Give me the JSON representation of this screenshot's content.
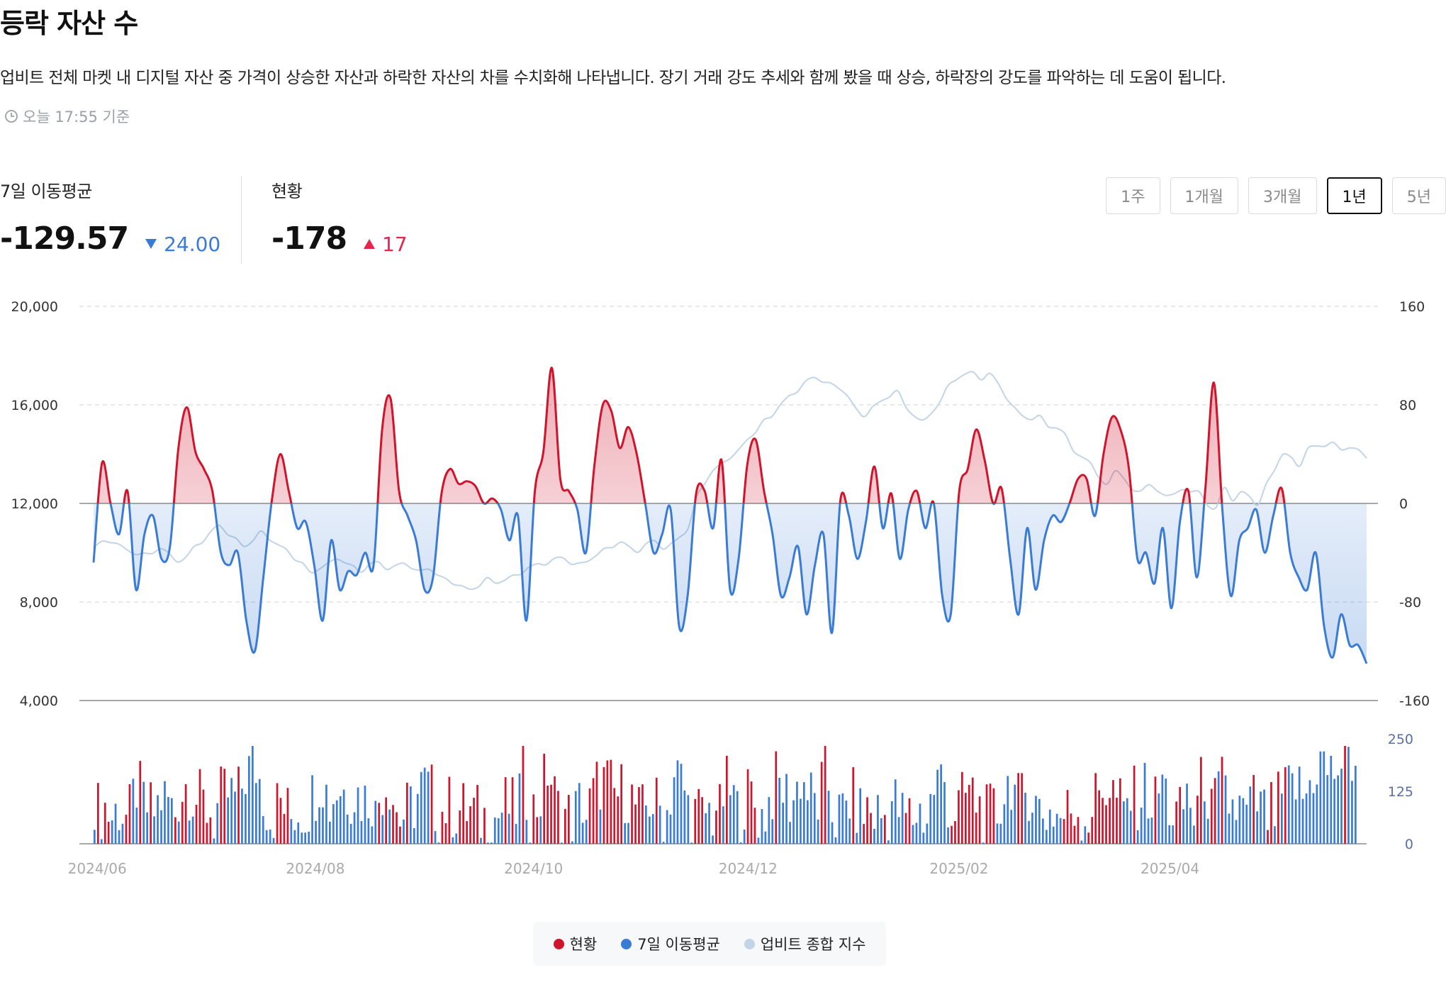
{
  "header": {
    "title": "등락 자산 수",
    "description": "업비트 전체 마켓 내 디지털 자산 중 가격이 상승한 자산과 하락한 자산의 차를 수치화해 나타냅니다. 장기 거래 강도 추세와 함께 봤을 때 상승, 하락장의 강도를 파악하는 데 도움이 됩니다.",
    "updated": "오늘 17:55 기준"
  },
  "stats": {
    "ma7": {
      "label": "7일 이동평균",
      "value": "-129.57",
      "delta": "24.00"
    },
    "current": {
      "label": "현황",
      "value": "-178",
      "delta": "17"
    }
  },
  "periods": {
    "p1": "1주",
    "p2": "1개월",
    "p3": "3개월",
    "p4": "1년",
    "p5": "5년",
    "active": "1년"
  },
  "legend": {
    "current": "현황",
    "ma7": "7일 이동평균",
    "index": "업비트 종합 지수"
  },
  "colors": {
    "red": "#d0142c",
    "blue": "#3a7bd5",
    "index": "#c2d4e6",
    "grid": "#d0d0d0"
  },
  "chart_data": [
    {
      "type": "line",
      "title": "등락 자산 수",
      "x_start": "2024-05-31",
      "x_end": "2025-05-26",
      "x_ticks": [
        "2024/06",
        "2024/08",
        "2024/10",
        "2024/12",
        "2025/02",
        "2025/04"
      ],
      "x_tick_dates": [
        "2024-06-05",
        "2024-08-05",
        "2024-10-05",
        "2024-12-04",
        "2025-02-01",
        "2025-04-01"
      ],
      "y_left_ticks": [
        "20,000",
        "16,000",
        "12,000",
        "8,000",
        "4,000"
      ],
      "y_left_range": [
        4000,
        20000
      ],
      "y_right_ticks": [
        "160",
        "80",
        "0",
        "-80",
        "-160"
      ],
      "y_right_range": [
        -160,
        160
      ],
      "series": [
        {
          "name": "7일 이동평균",
          "axis": "right",
          "sample_every_days": 3,
          "values": [
            -48,
            33,
            0,
            -25,
            10,
            -70,
            -25,
            -10,
            -45,
            -35,
            45,
            78,
            42,
            28,
            10,
            -40,
            -50,
            -40,
            -95,
            -120,
            -60,
            2,
            40,
            10,
            -20,
            -15,
            -50,
            -95,
            -30,
            -70,
            -55,
            -58,
            -40,
            -50,
            60,
            85,
            10,
            -10,
            -30,
            -70,
            -60,
            8,
            28,
            16,
            18,
            14,
            0,
            4,
            -5,
            -30,
            -10,
            -95,
            10,
            42,
            110,
            20,
            10,
            -5,
            -40,
            30,
            80,
            75,
            45,
            62,
            40,
            0,
            -40,
            -25,
            -5,
            -100,
            -75,
            8,
            10,
            -20,
            35,
            -70,
            -45,
            30,
            52,
            10,
            -25,
            -75,
            -60,
            -35,
            -90,
            -50,
            -25,
            -105,
            3,
            -10,
            -45,
            -15,
            30,
            -20,
            8,
            -45,
            -5,
            10,
            -20,
            0,
            -75,
            -90,
            10,
            28,
            60,
            35,
            0,
            12,
            -45,
            -90,
            -20,
            -70,
            -30,
            -10,
            -15,
            0,
            20,
            20,
            -10,
            40,
            70,
            60,
            28,
            -45,
            -40,
            -65,
            -20,
            -85,
            -15,
            10,
            -60,
            12,
            98,
            -5,
            -75,
            -30,
            -20,
            -5,
            -40,
            -10,
            12,
            -40,
            -60,
            -70,
            -40,
            -100,
            -125,
            -90,
            -115,
            -115,
            -130
          ]
        },
        {
          "name": "업비트 종합 지수",
          "axis": "left",
          "sample_every_days": 3,
          "values": [
            10200,
            10400,
            10500,
            10300,
            10100,
            10000,
            9900,
            10000,
            10200,
            9900,
            9700,
            9800,
            10200,
            10500,
            10800,
            11100,
            10800,
            10500,
            10300,
            10500,
            10800,
            10600,
            10300,
            10100,
            9800,
            9500,
            9200,
            9400,
            9500,
            9800,
            9600,
            9400,
            9300,
            9500,
            9600,
            9400,
            9400,
            9600,
            9400,
            9200,
            9400,
            9100,
            8900,
            8800,
            8600,
            8500,
            8700,
            8900,
            8800,
            8900,
            9000,
            9200,
            9400,
            9500,
            9600,
            9700,
            9800,
            9600,
            9500,
            9700,
            9900,
            10100,
            10300,
            10400,
            10200,
            10100,
            10300,
            10500,
            10200,
            10300,
            10700,
            11000,
            12200,
            12900,
            13300,
            13600,
            13900,
            14100,
            14600,
            14900,
            15300,
            15600,
            16000,
            16300,
            16600,
            16900,
            17100,
            17000,
            16800,
            16700,
            16400,
            15800,
            15600,
            15900,
            16100,
            16400,
            16500,
            15900,
            15600,
            15300,
            15700,
            16100,
            16700,
            17100,
            17200,
            17300,
            17100,
            17200,
            16900,
            16300,
            15800,
            15600,
            15400,
            15500,
            15200,
            15000,
            14800,
            14200,
            13800,
            13700,
            13100,
            12700,
            13400,
            13000,
            12500,
            12600,
            12700,
            12500,
            12400,
            12300,
            12600,
            12500,
            12400,
            12000,
            11800,
            12600,
            12200,
            12400,
            12300,
            12000,
            12700,
            13400,
            14000,
            13800,
            13600,
            14200,
            14300,
            14400,
            14400,
            14200,
            14300,
            14100,
            13900
          ]
        },
        {
          "name": "현황",
          "type": "bar",
          "axis": "bottom",
          "y_ticks": [
            "250",
            "125",
            "0"
          ],
          "y_range": [
            0,
            250
          ],
          "note": "daily bars, red when positive, blue when negative",
          "colors": [
            "red",
            "blue"
          ]
        }
      ]
    }
  ]
}
